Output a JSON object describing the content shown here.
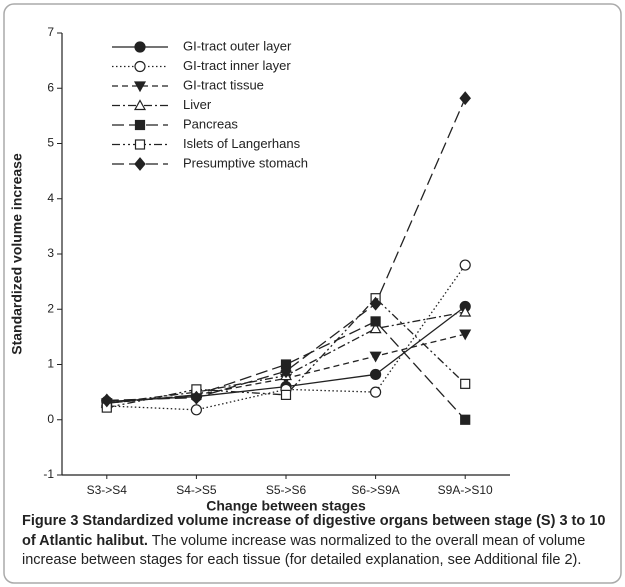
{
  "chart_data": {
    "type": "line",
    "y_label": "Standardized volume increase",
    "x_label": "Change between stages",
    "caption_title": "Figure 3 Standardized volume increase of digestive organs between stage (S) 3 to 10 of Atlantic halibut.",
    "caption_text": "The volume increase was normalized to the overall mean of volume increase between stages for each tissue (for detailed explanation, see Additional file 2).",
    "categories": [
      "S3->S4",
      "S4->S5",
      "S5->S6",
      "S6->S9A",
      "S9A->S10"
    ],
    "ylim": [
      -1,
      7
    ],
    "yticks": [
      -1,
      0,
      1,
      2,
      3,
      4,
      5,
      6,
      7
    ],
    "legend": "upper left",
    "series": [
      {
        "name": "GI-tract outer layer",
        "color": "#222222",
        "marker": "filled-circle",
        "linestyle": "solid",
        "values": [
          0.33,
          0.42,
          0.6,
          0.82,
          2.05
        ]
      },
      {
        "name": "GI-tract inner layer",
        "color": "#222222",
        "marker": "open-circle",
        "linestyle": "dotted",
        "values": [
          0.25,
          0.18,
          0.55,
          0.5,
          2.8
        ]
      },
      {
        "name": "GI-tract tissue",
        "color": "#222222",
        "marker": "filled-triangle-down",
        "linestyle": "dashed",
        "values": [
          0.3,
          0.45,
          0.75,
          1.15,
          1.55
        ]
      },
      {
        "name": "Liver",
        "color": "#222222",
        "marker": "open-triangle-up",
        "linestyle": "dashdot",
        "values": [
          0.3,
          0.5,
          0.8,
          1.65,
          1.95
        ]
      },
      {
        "name": "Pancreas",
        "color": "#222222",
        "marker": "filled-square",
        "linestyle": "longdash",
        "values": [
          0.3,
          0.45,
          1.0,
          1.78,
          0
        ]
      },
      {
        "name": "Islets of Langerhans",
        "color": "#222222",
        "marker": "open-square",
        "linestyle": "dashdotdot",
        "values": [
          0.22,
          0.55,
          0.45,
          2.2,
          0.65
        ]
      },
      {
        "name": "Presumptive stomach",
        "color": "#222222",
        "marker": "filled-diamond",
        "linestyle": "longdash",
        "values": [
          0.35,
          0.4,
          0.88,
          2.1,
          5.82
        ]
      }
    ]
  }
}
